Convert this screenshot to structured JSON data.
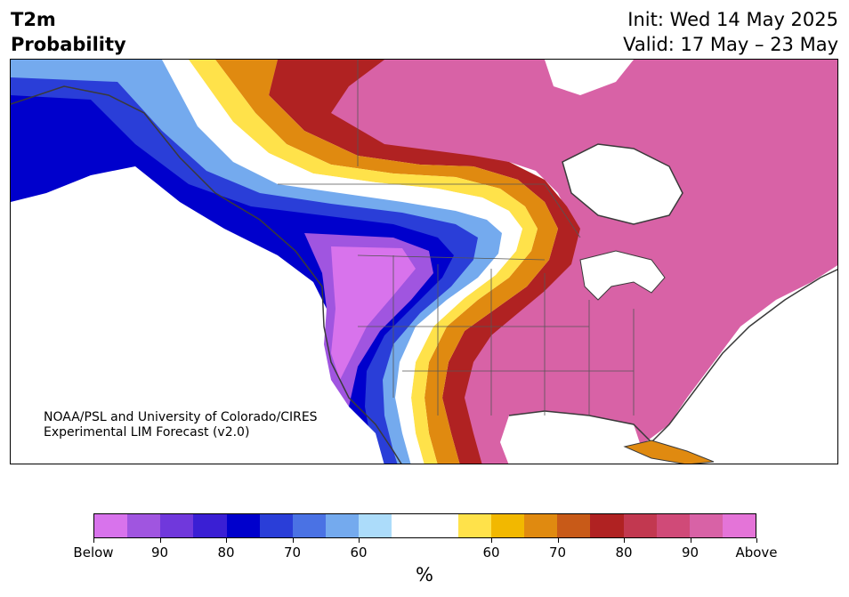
{
  "header": {
    "title_line1": "T2m",
    "title_line2": "Probability",
    "init": "Init: Wed 14 May 2025",
    "valid": "Valid: 17 May – 23 May"
  },
  "map": {
    "region": "North America",
    "credit_line1": "NOAA/PSL and University of Colorado/CIRES",
    "credit_line2": "Experimental LIM Forecast (v2.0)"
  },
  "colorbar": {
    "unit": "%",
    "colors": [
      "#d873ec",
      "#a055e0",
      "#7038dc",
      "#3a1fd4",
      "#0000cc",
      "#2a3ed8",
      "#4a72e4",
      "#74aaee",
      "#acdcfa",
      "#ffffff",
      "#ffffff",
      "#ffe24a",
      "#f2b800",
      "#e08a10",
      "#c85a18",
      "#b02222",
      "#c23850",
      "#d04a78",
      "#d862a6",
      "#e474d8"
    ],
    "tick_labels": [
      "Below",
      "90",
      "80",
      "70",
      "60",
      "60",
      "70",
      "80",
      "90",
      "Above"
    ]
  },
  "colors": {
    "cold_core": "#0000cc",
    "cold_edge": "#acdcfa",
    "warm_core": "#b02222",
    "warm_pink": "#d862a6",
    "land_border": "#3a3a3a"
  }
}
